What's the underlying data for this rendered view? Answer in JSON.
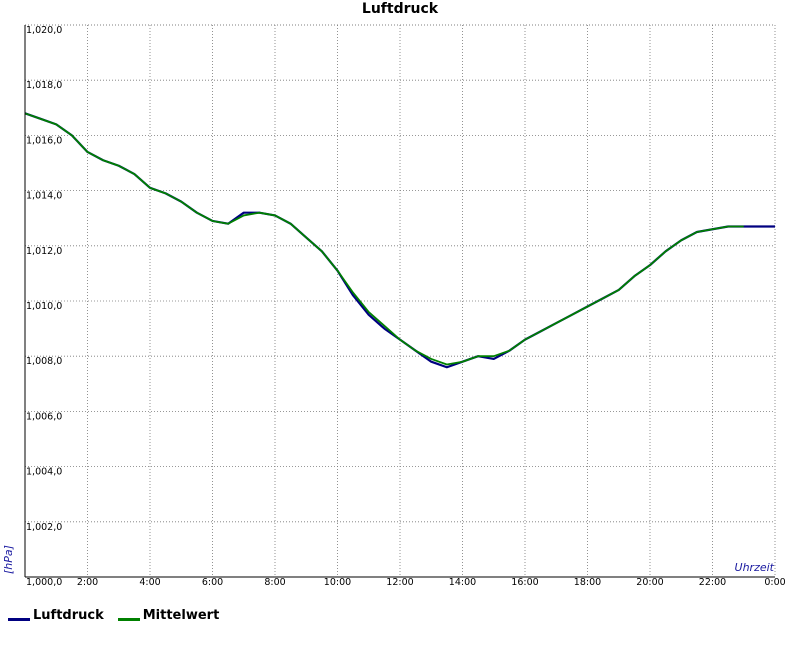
{
  "chart_data": {
    "type": "line",
    "title": "Luftdruck",
    "xlabel": "Uhrzeit",
    "ylabel": "[hPa]",
    "x_unit": "hours",
    "xlim": [
      0,
      24
    ],
    "ylim": [
      1000.0,
      1020.0
    ],
    "x_ticks": [
      "2:00",
      "4:00",
      "6:00",
      "8:00",
      "10:00",
      "12:00",
      "14:00",
      "16:00",
      "18:00",
      "20:00",
      "22:00",
      "0:00"
    ],
    "y_ticks": [
      "1,000,0",
      "1,002,0",
      "1,004,0",
      "1,006,0",
      "1,008,0",
      "1,010,0",
      "1,012,0",
      "1,014,0",
      "1,016,0",
      "1,018,0",
      "1,020,0"
    ],
    "grid": true,
    "legend_position": "bottom-left",
    "series": [
      {
        "name": "Luftdruck",
        "color": "#000080",
        "x": [
          0.0,
          0.5,
          1.0,
          1.5,
          2.0,
          2.5,
          3.0,
          3.5,
          4.0,
          4.5,
          5.0,
          5.5,
          6.0,
          6.5,
          7.0,
          7.5,
          8.0,
          8.5,
          9.0,
          9.5,
          10.0,
          10.5,
          11.0,
          11.5,
          12.0,
          12.5,
          13.0,
          13.5,
          14.0,
          14.5,
          15.0,
          15.5,
          16.0,
          16.5,
          17.0,
          17.5,
          18.0,
          18.5,
          19.0,
          19.5,
          20.0,
          20.5,
          21.0,
          21.5,
          22.0,
          22.5,
          23.0,
          23.5,
          24.0
        ],
        "values": [
          1016.8,
          1016.6,
          1016.4,
          1016.0,
          1015.4,
          1015.1,
          1014.9,
          1014.6,
          1014.1,
          1013.9,
          1013.6,
          1013.2,
          1012.9,
          1012.8,
          1013.2,
          1013.2,
          1013.1,
          1012.8,
          1012.3,
          1011.8,
          1011.1,
          1010.2,
          1009.5,
          1009.0,
          1008.6,
          1008.2,
          1007.8,
          1007.6,
          1007.8,
          1008.0,
          1007.9,
          1008.2,
          1008.6,
          1008.9,
          1009.2,
          1009.5,
          1009.8,
          1010.1,
          1010.4,
          1010.9,
          1011.3,
          1011.8,
          1012.2,
          1012.5,
          1012.6,
          1012.7,
          1012.7,
          1012.7,
          1012.7
        ]
      },
      {
        "name": "Mittelwert",
        "color": "#008000",
        "x": [
          0.0,
          0.5,
          1.0,
          1.5,
          2.0,
          2.5,
          3.0,
          3.5,
          4.0,
          4.5,
          5.0,
          5.5,
          6.0,
          6.5,
          7.0,
          7.5,
          8.0,
          8.5,
          9.0,
          9.5,
          10.0,
          10.5,
          11.0,
          11.5,
          12.0,
          12.5,
          13.0,
          13.5,
          14.0,
          14.5,
          15.0,
          15.5,
          16.0,
          16.5,
          17.0,
          17.5,
          18.0,
          18.5,
          19.0,
          19.5,
          20.0,
          20.5,
          21.0,
          21.5,
          22.0,
          22.5,
          23.0
        ],
        "values": [
          1016.8,
          1016.6,
          1016.4,
          1016.0,
          1015.4,
          1015.1,
          1014.9,
          1014.6,
          1014.1,
          1013.9,
          1013.6,
          1013.2,
          1012.9,
          1012.8,
          1013.1,
          1013.2,
          1013.1,
          1012.8,
          1012.3,
          1011.8,
          1011.1,
          1010.3,
          1009.6,
          1009.1,
          1008.6,
          1008.2,
          1007.9,
          1007.7,
          1007.8,
          1008.0,
          1008.0,
          1008.2,
          1008.6,
          1008.9,
          1009.2,
          1009.5,
          1009.8,
          1010.1,
          1010.4,
          1010.9,
          1011.3,
          1011.8,
          1012.2,
          1012.5,
          1012.6,
          1012.7,
          1012.7
        ]
      }
    ]
  }
}
